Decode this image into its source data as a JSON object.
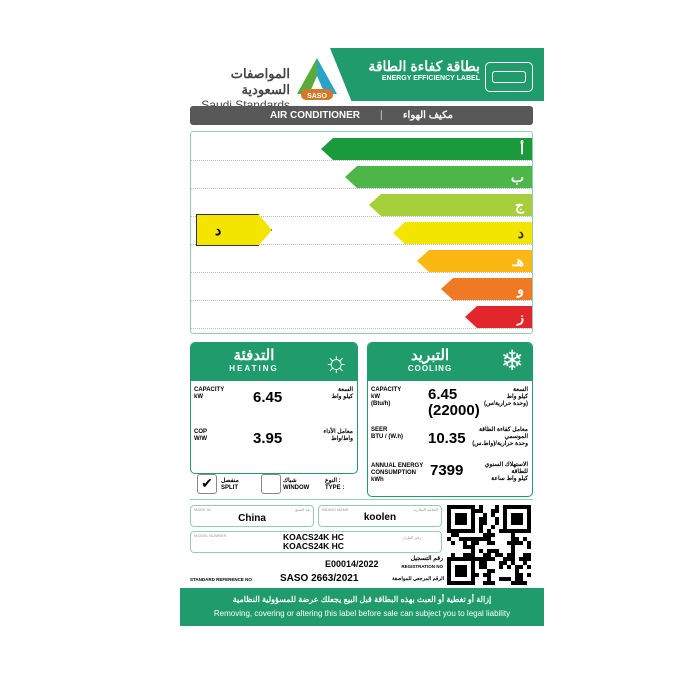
{
  "header": {
    "org_ar": "المواصفات السعودية",
    "org_en": "Saudi Standards",
    "logo_text": "SASO",
    "title_ar": "بطاقة كفاءة الطاقة",
    "title_en": "ENERGY EFFICIENCY LABEL"
  },
  "product": {
    "en": "AIR CONDITIONER",
    "ar": "مكيف الهواء"
  },
  "ratings": [
    {
      "letter": "أ",
      "color": "#1a9a3a"
    },
    {
      "letter": "ب",
      "color": "#4cb748"
    },
    {
      "letter": "ج",
      "color": "#a6cf3c"
    },
    {
      "letter": "د",
      "color": "#f4e500"
    },
    {
      "letter": "هـ",
      "color": "#fbb813"
    },
    {
      "letter": "و",
      "color": "#f07a23"
    },
    {
      "letter": "ز",
      "color": "#e3262c"
    }
  ],
  "current_rating": "د",
  "heating": {
    "title_ar": "التدفئة",
    "title_en": "HEATING",
    "capacity_label": "CAPACITY",
    "capacity_unit": "kW",
    "capacity_ar": "السعة",
    "capacity_unit_ar": "كيلو واط",
    "capacity": "6.45",
    "cop_label": "COP",
    "cop_unit": "W/W",
    "cop_ar": "معامل الأداء",
    "cop_unit_ar": "واط/واط",
    "cop": "3.95"
  },
  "type": {
    "label_ar": "النوع :",
    "label_en": "TYPE :",
    "split_ar": "منفصل",
    "split_en": "SPLIT",
    "window_ar": "شباك",
    "window_en": "WINDOW",
    "check": "✔"
  },
  "cooling": {
    "title_ar": "التبريد",
    "title_en": "COOLING",
    "capacity_label": "CAPACITY",
    "capacity_unit": "kW",
    "capacity_unit2": "(Btu/h)",
    "capacity_ar": "السعة",
    "capacity_unit_ar": "كيلو واط",
    "capacity_unit2_ar": "(وحدة حرارية/س)",
    "capacity": "6.45",
    "capacity_btu": "(22000)",
    "seer_label": "SEER",
    "seer_unit": "BTU / (W.h)",
    "seer_ar": "معامل كفاءة الطاقة الموسمي",
    "seer_unit_ar": "وحدة حرارية/(واط.س)",
    "seer": "10.35",
    "annual_label": "ANNUAL ENERGY CONSUMPTION",
    "annual_unit": "kWh",
    "annual_ar": "الاستهلاك السنوي للطاقة",
    "annual_unit_ar": "كيلو واط ساعة",
    "annual": "7399"
  },
  "fields": {
    "origin_label": "MADE IN",
    "origin_label_ar": "بلد الصنع",
    "origin": "China",
    "brand_label": "BRAND NAME",
    "brand_label_ar": "العلامة التجارية",
    "brand": "koolen",
    "model_label": "MODEL NUMBER",
    "model_label_ar": "رقم الطراز",
    "model1": "KOACS24K HC",
    "model2": "KOACS24K HC",
    "reg_label_ar": "رقم التسجيل",
    "reg_label": "REGISTRATION NO",
    "reg": "E00014/2022",
    "std_label": "STANDARD REFERENCE NO",
    "std_label_ar": "الرقم المرجعي للمواصفة",
    "std": "SASO 2663/2021"
  },
  "footer": {
    "ar": "إزالة أو تغطية أو العبث بهذه البطاقة قبل البيع يجعلك عرضة للمسؤولية النظامية",
    "en": "Removing, covering or altering this label before sale can subject you to legal liability"
  }
}
